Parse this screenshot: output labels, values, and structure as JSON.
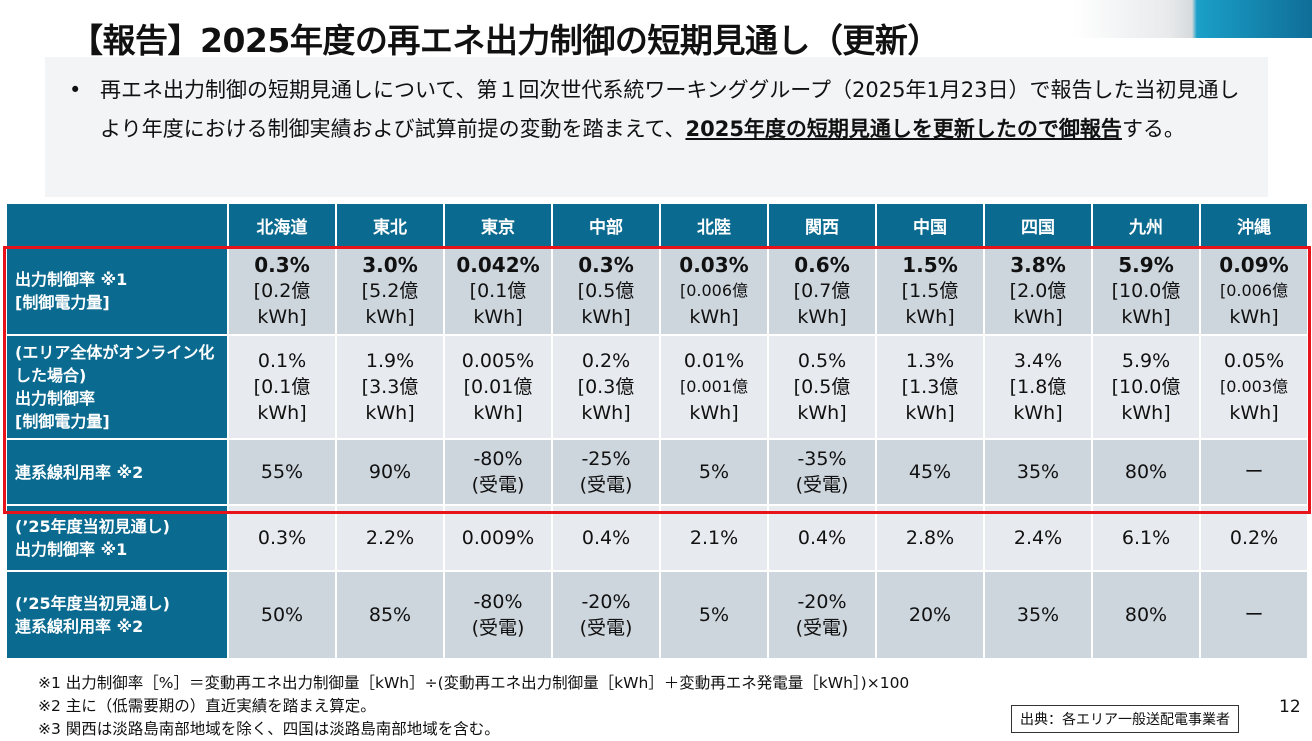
{
  "title": "【報告】2025年度の再エネ出力制御の短期見通し（更新）",
  "summary": {
    "bullet": "•",
    "text_1": "再エネ出力制御の短期見通しについて、第１回次世代系統ワーキンググループ（2025年1月23日）で報告した当初見通しより年度における制御実績および試算前提の変動を踏まえて、",
    "text_bold": "2025年度の短期見通しを更新したので御報告",
    "text_2": "する。"
  },
  "table": {
    "headers": [
      "北海道",
      "東北",
      "東京",
      "中部",
      "北陸",
      "関西",
      "中国",
      "四国",
      "九州",
      "沖縄"
    ],
    "rows": [
      {
        "label": [
          "出力制御率 ※1",
          "[制御電力量]"
        ],
        "rates": [
          "0.3%",
          "3.0%",
          "0.042%",
          "0.3%",
          "0.03%",
          "0.6%",
          "1.5%",
          "3.8%",
          "5.9%",
          "0.09%"
        ],
        "amounts": [
          "[0.2億",
          "[5.2億",
          "[0.1億",
          "[0.5億",
          "[0.006億",
          "[0.7億",
          "[1.5億",
          "[2.0億",
          "[10.0億",
          "[0.006億"
        ],
        "unit": "kWh]"
      },
      {
        "label": [
          "(エリア全体がオンライン化した場合)",
          "出力制御率",
          "[制御電力量]"
        ],
        "rates": [
          "0.1%",
          "1.9%",
          "0.005%",
          "0.2%",
          "0.01%",
          "0.5%",
          "1.3%",
          "3.4%",
          "5.9%",
          "0.05%"
        ],
        "amounts": [
          "[0.1億",
          "[3.3億",
          "[0.01億",
          "[0.3億",
          "[0.001億",
          "[0.5億",
          "[1.3億",
          "[1.8億",
          "[10.0億",
          "[0.003億"
        ],
        "unit": "kWh]"
      },
      {
        "label": [
          "連系線利用率 ※2"
        ],
        "values": [
          "55%",
          "90%",
          "-80%\n(受電)",
          "-25%\n(受電)",
          "5%",
          "-35%\n(受電)",
          "45%",
          "35%",
          "80%",
          "ー"
        ]
      },
      {
        "label": [
          "(’25年度当初見通し)",
          "出力制御率 ※1"
        ],
        "values": [
          "0.3%",
          "2.2%",
          "0.009%",
          "0.4%",
          "2.1%",
          "0.4%",
          "2.8%",
          "2.4%",
          "6.1%",
          "0.2%"
        ]
      },
      {
        "label": [
          "(’25年度当初見通し)",
          "連系線利用率 ※2"
        ],
        "values": [
          "50%",
          "85%",
          "-80%\n(受電)",
          "-20%\n(受電)",
          "5%",
          "-20%\n(受電)",
          "20%",
          "35%",
          "80%",
          "ー"
        ]
      }
    ]
  },
  "notes": [
    "※1 出力制御率［%］＝変動再エネ出力制御量［kWh］÷(変動再エネ出力制御量［kWh］＋変動再エネ発電量［kWh］)×100",
    "※2 主に（低需要期の）直近実績を踏まえ算定。",
    "※3 関西は淡路島南部地域を除く、四国は淡路島南部地域を含む。"
  ],
  "source": "出典：各エリア一般送配電事業者",
  "page_number": "12",
  "colors": {
    "header": "#0b6a8f",
    "highlight": "#e8121b"
  }
}
